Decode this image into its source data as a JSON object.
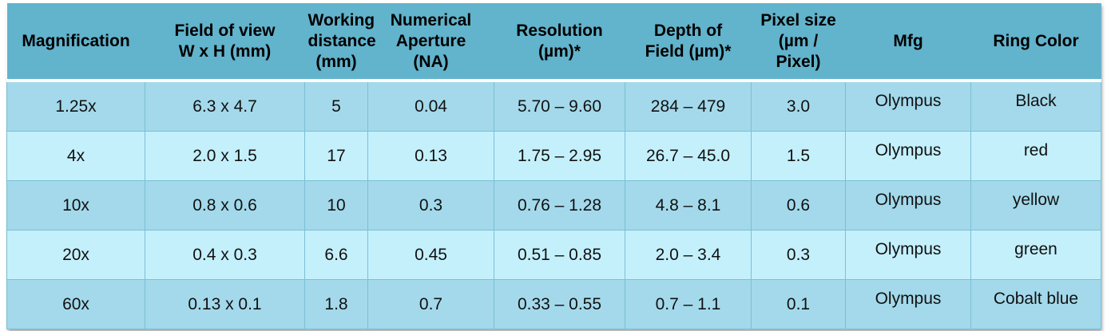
{
  "headers": [
    [
      "Magnification"
    ],
    [
      "Field of view",
      "W x H (mm)"
    ],
    [
      "Working",
      "distance",
      "(mm)"
    ],
    [
      "Numerical",
      "Aperture",
      "(NA)"
    ],
    [
      "Resolution",
      "(µm)*"
    ],
    [
      "Depth of",
      "Field (µm)*"
    ],
    [
      "Pixel size",
      "(µm /",
      "Pixel)"
    ],
    [
      "Mfg"
    ],
    [
      "Ring Color"
    ]
  ],
  "rows": [
    [
      "1.25x",
      "6.3 x 4.7",
      "5",
      "0.04",
      "5.70 – 9.60",
      "284 – 479",
      "3.0",
      "Olympus",
      "Black"
    ],
    [
      "4x",
      "2.0 x 1.5",
      "17",
      "0.13",
      "1.75 – 2.95",
      "26.7 – 45.0",
      "1.5",
      "Olympus",
      "red"
    ],
    [
      "10x",
      "0.8 x 0.6",
      "10",
      "0.3",
      "0.76 – 1.28",
      "4.8 – 8.1",
      "0.6",
      "Olympus",
      "yellow"
    ],
    [
      "20x",
      "0.4 x 0.3",
      "6.6",
      "0.45",
      "0.51 – 0.85",
      "2.0 – 3.4",
      "0.3",
      "Olympus",
      "green"
    ],
    [
      "60x",
      "0.13 x 0.1",
      "1.8",
      "0.7",
      "0.33 – 0.55",
      "0.7 – 1.1",
      "0.1",
      "Olympus",
      "Cobalt blue"
    ]
  ]
}
